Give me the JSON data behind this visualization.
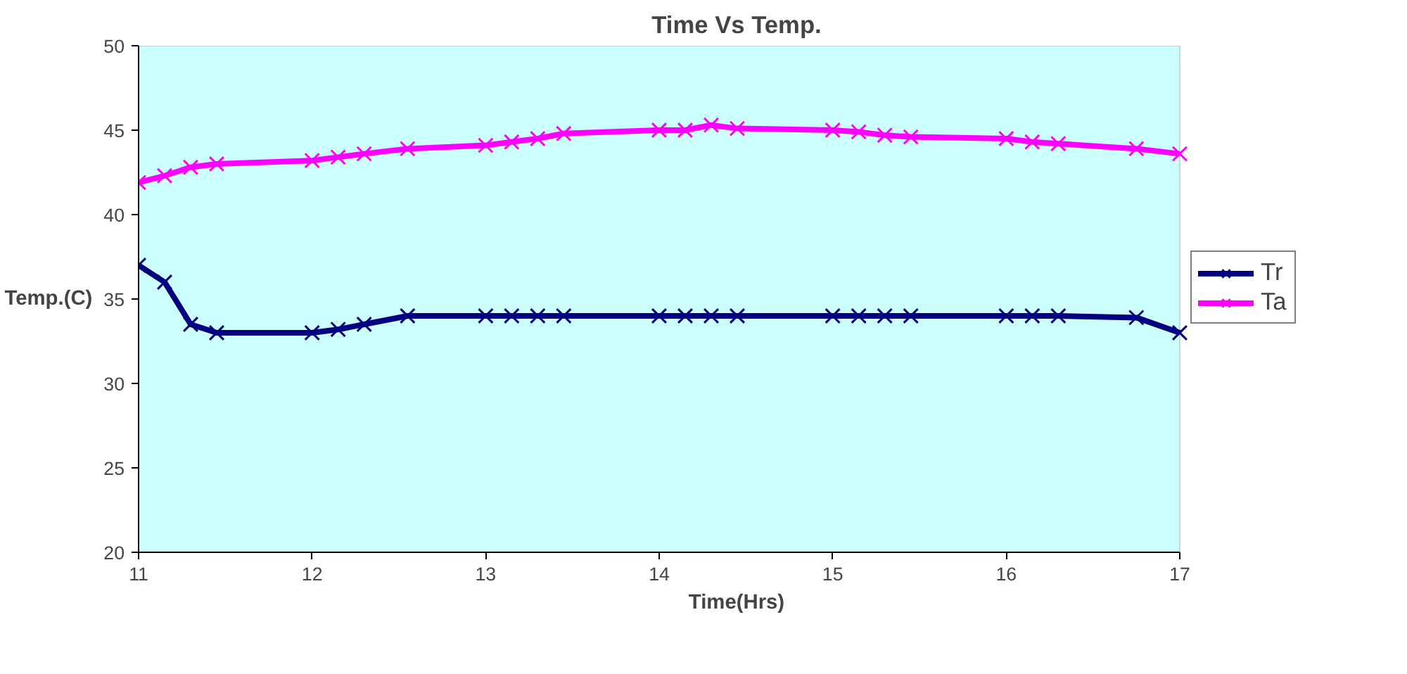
{
  "chart_data": {
    "type": "line",
    "title": "Time Vs Temp.",
    "xlabel": "Time(Hrs)",
    "ylabel": "Temp.(C)",
    "x": [
      11.0,
      11.15,
      11.3,
      11.45,
      12.0,
      12.15,
      12.3,
      12.55,
      13.0,
      13.15,
      13.3,
      13.45,
      14.0,
      14.15,
      14.3,
      14.45,
      15.0,
      15.15,
      15.3,
      15.45,
      16.0,
      16.15,
      16.3,
      16.75,
      17.0
    ],
    "series": [
      {
        "name": "Tr",
        "color": "#000080",
        "marker": "cross",
        "values": [
          37.0,
          36.0,
          33.5,
          33.0,
          33.0,
          33.2,
          33.5,
          34.0,
          34.0,
          34.0,
          34.0,
          34.0,
          34.0,
          34.0,
          34.0,
          34.0,
          34.0,
          34.0,
          34.0,
          34.0,
          34.0,
          34.0,
          34.0,
          33.9,
          33.0
        ]
      },
      {
        "name": "Ta",
        "color": "#ff00ff",
        "marker": "cross",
        "values": [
          41.9,
          42.3,
          42.8,
          43.0,
          43.2,
          43.4,
          43.6,
          43.9,
          44.1,
          44.3,
          44.5,
          44.8,
          45.0,
          45.0,
          45.3,
          45.1,
          45.0,
          44.9,
          44.7,
          44.6,
          44.5,
          44.3,
          44.2,
          43.9,
          43.6
        ]
      }
    ],
    "xlim": [
      11,
      17
    ],
    "xticks": [
      11,
      12,
      13,
      14,
      15,
      16,
      17
    ],
    "ylim": [
      20,
      50
    ],
    "yticks": [
      20,
      25,
      30,
      35,
      40,
      45,
      50
    ],
    "grid": false,
    "legend": "right"
  }
}
